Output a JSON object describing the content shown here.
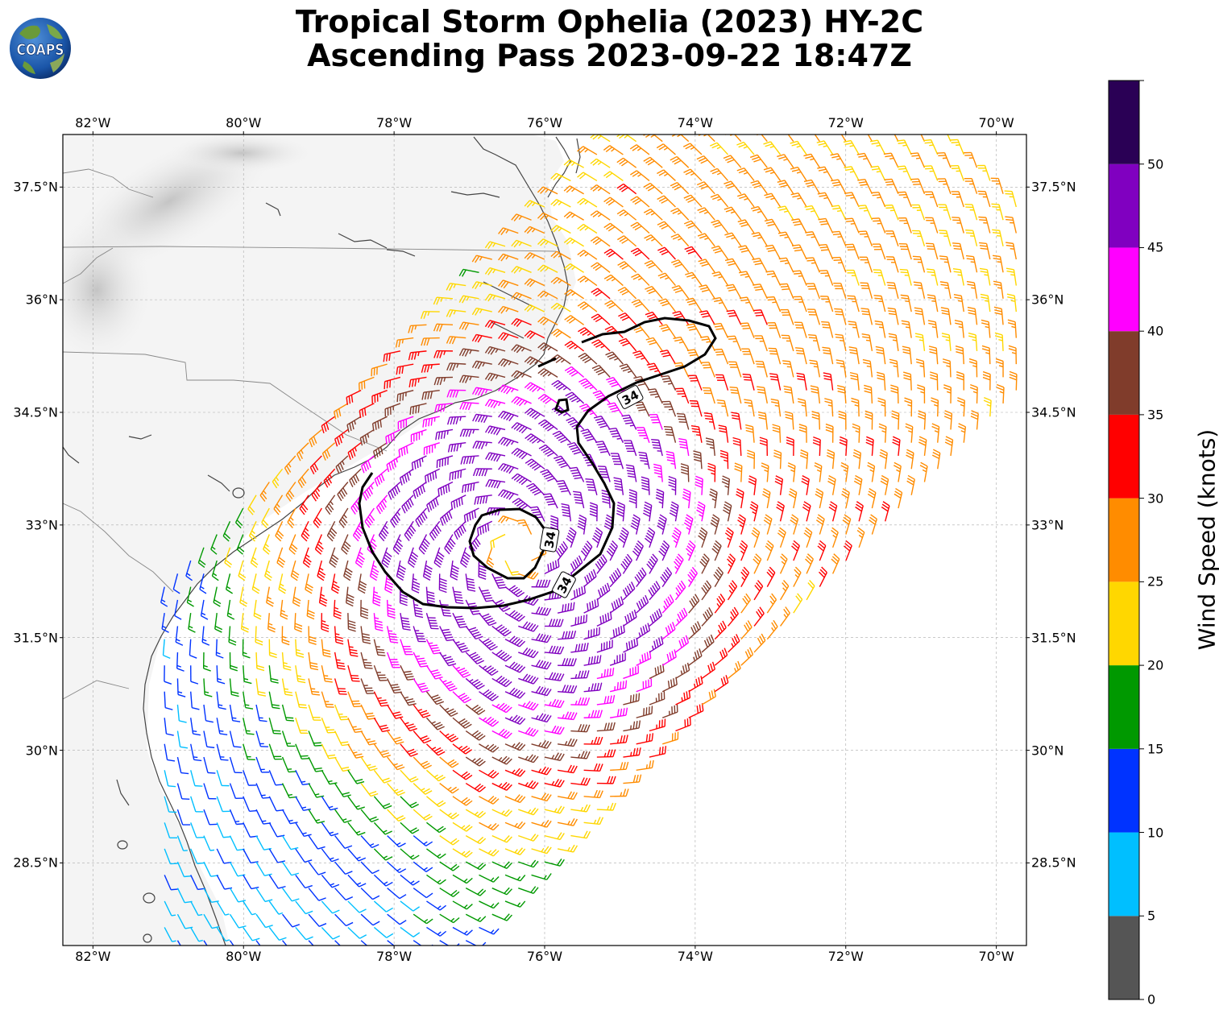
{
  "title": {
    "line1": "Tropical Storm Ophelia (2023) HY-2C",
    "line2": "Ascending Pass 2023-09-22 18:47Z"
  },
  "logo": {
    "text": "COAPS"
  },
  "map": {
    "lon_range": [
      -82.4,
      -69.6
    ],
    "lat_range": [
      27.4,
      38.2
    ],
    "lon_ticks": [
      {
        "value": -82,
        "label": "82°W"
      },
      {
        "value": -80,
        "label": "80°W"
      },
      {
        "value": -78,
        "label": "78°W"
      },
      {
        "value": -76,
        "label": "76°W"
      },
      {
        "value": -74,
        "label": "74°W"
      },
      {
        "value": -72,
        "label": "72°W"
      },
      {
        "value": -70,
        "label": "70°W"
      }
    ],
    "lat_ticks": [
      {
        "value": 37.5,
        "label": "37.5°N"
      },
      {
        "value": 36,
        "label": "36°N"
      },
      {
        "value": 34.5,
        "label": "34.5°N"
      },
      {
        "value": 33,
        "label": "33°N"
      },
      {
        "value": 31.5,
        "label": "31.5°N"
      },
      {
        "value": 30,
        "label": "30°N"
      },
      {
        "value": 28.5,
        "label": "28.5°N"
      }
    ],
    "storm_center": {
      "lon": -76.35,
      "lat": 32.7
    },
    "swath_axis_bearing_deg": 45,
    "contour_label": "34",
    "contour_level_kt": 34
  },
  "colorbar": {
    "title": "Wind Speed (knots)",
    "bins": [
      {
        "from": 0,
        "to": 5,
        "color": "#555555"
      },
      {
        "from": 5,
        "to": 10,
        "color": "#00bfff"
      },
      {
        "from": 10,
        "to": 15,
        "color": "#0033ff"
      },
      {
        "from": 15,
        "to": 20,
        "color": "#009900"
      },
      {
        "from": 20,
        "to": 25,
        "color": "#ffd700"
      },
      {
        "from": 25,
        "to": 30,
        "color": "#ff8c00"
      },
      {
        "from": 30,
        "to": 35,
        "color": "#ff0000"
      },
      {
        "from": 35,
        "to": 40,
        "color": "#803c2b"
      },
      {
        "from": 40,
        "to": 45,
        "color": "#ff00ff"
      },
      {
        "from": 45,
        "to": 50,
        "color": "#8000c0"
      },
      {
        "from": 50,
        "to": 55,
        "color": "#2a0055"
      }
    ],
    "tick_labels": [
      "0",
      "5",
      "10",
      "15",
      "20",
      "25",
      "30",
      "35",
      "40",
      "45",
      "50"
    ]
  }
}
